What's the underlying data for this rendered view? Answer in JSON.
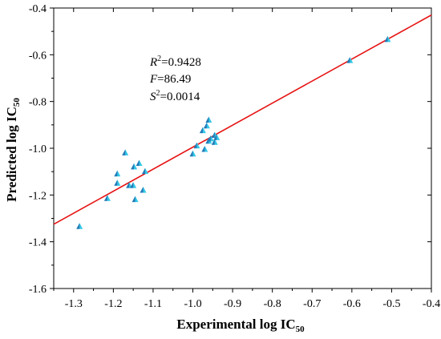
{
  "chart_data": {
    "type": "scatter",
    "title": "",
    "xlabel": "Experimental log IC",
    "xlabel_sub": "50",
    "ylabel": "Predicted log IC",
    "ylabel_sub": "50",
    "xlim": [
      -1.35,
      -0.4
    ],
    "ylim": [
      -1.6,
      -0.4
    ],
    "x_ticks": [
      -1.3,
      -1.2,
      -1.1,
      -1.0,
      -0.9,
      -0.8,
      -0.7,
      -0.6,
      -0.5,
      -0.4
    ],
    "x_tick_labels": [
      "-1.3",
      "-1.2",
      "-1.1",
      "-1.0",
      "-0.9",
      "-0.8",
      "-0.7",
      "-0.6",
      "-0.5",
      "-0.4"
    ],
    "y_ticks": [
      -1.6,
      -1.4,
      -1.2,
      -1.0,
      -0.8,
      -0.6,
      -0.4
    ],
    "y_tick_labels": [
      "-1.6",
      "-1.4",
      "-1.2",
      "-1.0",
      "-0.8",
      "-0.6",
      "-0.4"
    ],
    "grid": false,
    "marker": "triangle",
    "marker_color": "#33c8e8",
    "line_color": "#e61414",
    "points": [
      {
        "x": -1.285,
        "y": -1.335
      },
      {
        "x": -1.215,
        "y": -1.215
      },
      {
        "x": -1.19,
        "y": -1.11
      },
      {
        "x": -1.19,
        "y": -1.15
      },
      {
        "x": -1.17,
        "y": -1.02
      },
      {
        "x": -1.16,
        "y": -1.16
      },
      {
        "x": -1.15,
        "y": -1.16
      },
      {
        "x": -1.148,
        "y": -1.08
      },
      {
        "x": -1.145,
        "y": -1.22
      },
      {
        "x": -1.135,
        "y": -1.065
      },
      {
        "x": -1.125,
        "y": -1.18
      },
      {
        "x": -1.12,
        "y": -1.1
      },
      {
        "x": -1.0,
        "y": -1.025
      },
      {
        "x": -0.99,
        "y": -0.99
      },
      {
        "x": -0.975,
        "y": -0.925
      },
      {
        "x": -0.97,
        "y": -1.005
      },
      {
        "x": -0.965,
        "y": -0.905
      },
      {
        "x": -0.96,
        "y": -0.88
      },
      {
        "x": -0.96,
        "y": -0.97
      },
      {
        "x": -0.955,
        "y": -0.96
      },
      {
        "x": -0.945,
        "y": -0.975
      },
      {
        "x": -0.945,
        "y": -0.945
      },
      {
        "x": -0.94,
        "y": -0.955
      },
      {
        "x": -0.605,
        "y": -0.625
      },
      {
        "x": -0.51,
        "y": -0.535
      }
    ],
    "fit_line": {
      "x": [
        -1.35,
        -0.4
      ],
      "y": [
        -1.325,
        -0.43
      ]
    },
    "annotations": {
      "r2_label": "R",
      "r2_sup": "2",
      "r2_value": "=0.9428",
      "f_label": "F",
      "f_value": "=86.49",
      "s2_label": "S",
      "s2_sup": "2",
      "s2_value": "=0.0014"
    }
  }
}
